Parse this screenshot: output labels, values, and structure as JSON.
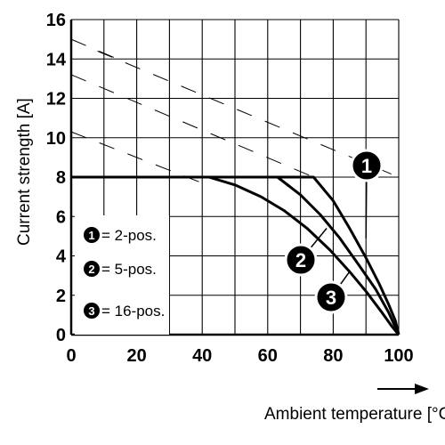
{
  "chart_data": {
    "type": "line",
    "xlabel": "Ambient temperature [°C]",
    "ylabel": "Current strength [A]",
    "xlim": [
      0,
      100
    ],
    "ylim": [
      0,
      16
    ],
    "xticks": [
      0,
      20,
      40,
      60,
      80,
      100
    ],
    "yticks": [
      0,
      2,
      4,
      6,
      8,
      10,
      12,
      14,
      16
    ],
    "x_tick_labels": [
      "0",
      "20",
      "40",
      "60",
      "80",
      "100"
    ],
    "y_tick_labels": [
      "0",
      "2",
      "4",
      "6",
      "8",
      "10",
      "12",
      "14",
      "16"
    ],
    "grid": true,
    "x_axis_arrow": true,
    "legend_placement": "bottom-left",
    "series": [
      {
        "marker": "1",
        "name": "2-pos.",
        "points": [
          [
            0,
            8
          ],
          [
            74,
            8
          ],
          [
            80,
            6.8
          ],
          [
            85,
            5.4
          ],
          [
            90,
            3.9
          ],
          [
            94,
            2.6
          ],
          [
            97,
            1.5
          ],
          [
            99,
            0.7
          ],
          [
            100,
            0
          ]
        ]
      },
      {
        "marker": "2",
        "name": "5-pos.",
        "points": [
          [
            0,
            8
          ],
          [
            63,
            8
          ],
          [
            70,
            7.1
          ],
          [
            76,
            6.1
          ],
          [
            82,
            4.9
          ],
          [
            88,
            3.5
          ],
          [
            93,
            2.3
          ],
          [
            97,
            1.1
          ],
          [
            100,
            0
          ]
        ]
      },
      {
        "marker": "3",
        "name": "16-pos.",
        "points": [
          [
            0,
            8
          ],
          [
            42,
            8
          ],
          [
            50,
            7.6
          ],
          [
            58,
            7.0
          ],
          [
            65,
            6.3
          ],
          [
            72,
            5.4
          ],
          [
            79,
            4.3
          ],
          [
            85,
            3.2
          ],
          [
            90,
            2.2
          ],
          [
            95,
            1.1
          ],
          [
            98,
            0.4
          ],
          [
            100,
            0
          ]
        ]
      }
    ],
    "dashed_guides": [
      [
        [
          0,
          15
        ],
        [
          17,
          13.8
        ]
      ],
      [
        [
          8,
          14.4
        ],
        [
          100,
          8
        ]
      ],
      [
        [
          0,
          13.2
        ],
        [
          74,
          8
        ]
      ],
      [
        [
          0,
          10.3
        ],
        [
          40,
          7.7
        ]
      ]
    ],
    "legend": [
      {
        "marker": "1",
        "label": "= 2-pos."
      },
      {
        "marker": "2",
        "label": "= 5-pos."
      },
      {
        "marker": "3",
        "label": "= 16-pos."
      }
    ]
  }
}
